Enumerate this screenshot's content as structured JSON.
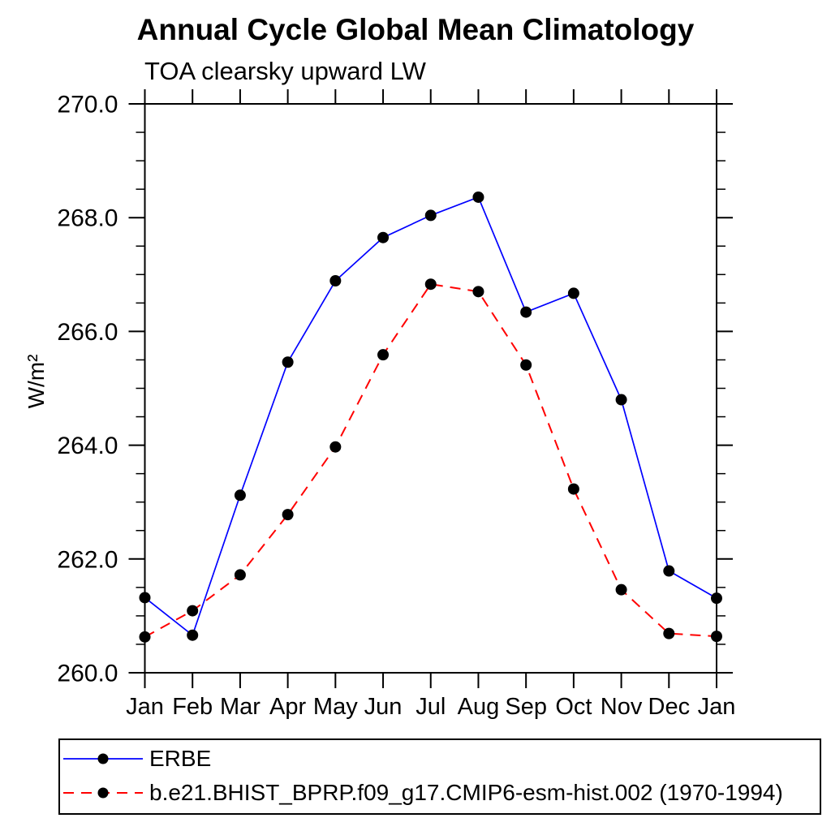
{
  "header": {
    "title": "Annual Cycle Global Mean Climatology",
    "subtitle": "TOA clearsky upward LW"
  },
  "chart_data": {
    "type": "line",
    "title": "Annual Cycle Global Mean Climatology",
    "subtitle": "TOA clearsky upward LW",
    "xlabel": "",
    "ylabel": "W/m²",
    "ylim": [
      260.0,
      270.0
    ],
    "ytick_major_interval": 2.0,
    "ytick_minor_interval": 0.5,
    "ytick_labels": [
      "260.0",
      "262.0",
      "264.0",
      "266.0",
      "268.0",
      "270.0"
    ],
    "categories": [
      "Jan",
      "Feb",
      "Mar",
      "Apr",
      "May",
      "Jun",
      "Jul",
      "Aug",
      "Sep",
      "Oct",
      "Nov",
      "Dec",
      "Jan"
    ],
    "grid": false,
    "legend_position": "bottom-left-box",
    "axis_color": "#000000",
    "marker_shape": "filled-circle",
    "series": [
      {
        "name": "ERBE",
        "color": "#0000ff",
        "line_style": "solid",
        "marker_color": "#000000",
        "values": [
          261.32,
          260.66,
          263.12,
          265.46,
          266.89,
          267.65,
          268.04,
          268.36,
          266.34,
          266.67,
          264.8,
          261.79,
          261.31
        ]
      },
      {
        "name": "b.e21.BHIST_BPRP.f09_g17.CMIP6-esm-hist.002 (1970-1994)",
        "color": "#ff0000",
        "line_style": "dashed",
        "marker_color": "#000000",
        "values": [
          260.63,
          261.09,
          261.72,
          262.78,
          263.97,
          265.59,
          266.83,
          266.7,
          265.41,
          263.23,
          261.46,
          260.69,
          260.64
        ]
      }
    ]
  }
}
